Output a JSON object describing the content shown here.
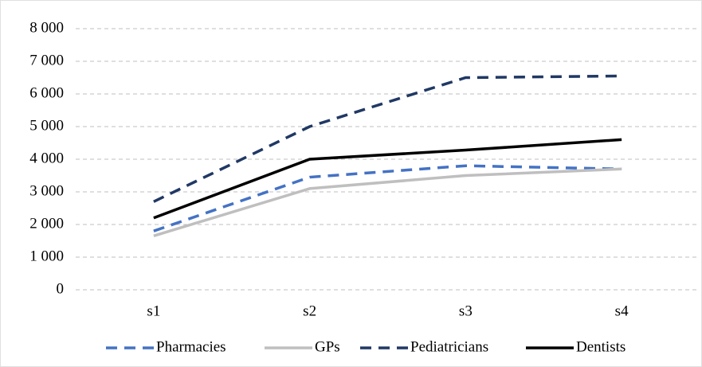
{
  "chart_data": {
    "type": "line",
    "categories": [
      "s1",
      "s2",
      "s3",
      "s4"
    ],
    "series": [
      {
        "name": "Pharmacies",
        "color": "#4472c4",
        "dashed": true,
        "values": [
          1800,
          3450,
          3800,
          3700
        ]
      },
      {
        "name": "GPs",
        "color": "#bfbfbf",
        "dashed": false,
        "values": [
          1650,
          3100,
          3500,
          3700
        ]
      },
      {
        "name": "Pediatricians",
        "color": "#203864",
        "dashed": true,
        "values": [
          2700,
          5000,
          6500,
          6550
        ]
      },
      {
        "name": "Dentists",
        "color": "#000000",
        "dashed": false,
        "values": [
          2200,
          4000,
          4280,
          4600
        ]
      }
    ],
    "ylim": [
      0,
      8000
    ],
    "yticks": [
      0,
      {
        "value": 1000,
        "label": "1 000"
      },
      {
        "value": 2000,
        "label": "2 000"
      },
      {
        "value": 3000,
        "label": "3 000"
      },
      {
        "value": 4000,
        "label": "4 000"
      },
      {
        "value": 5000,
        "label": "5 000"
      },
      {
        "value": 6000,
        "label": "6 000"
      },
      {
        "value": 7000,
        "label": "7 000"
      },
      {
        "value": 8000,
        "label": "8 000"
      }
    ],
    "grid": true,
    "legend": "bottom"
  }
}
